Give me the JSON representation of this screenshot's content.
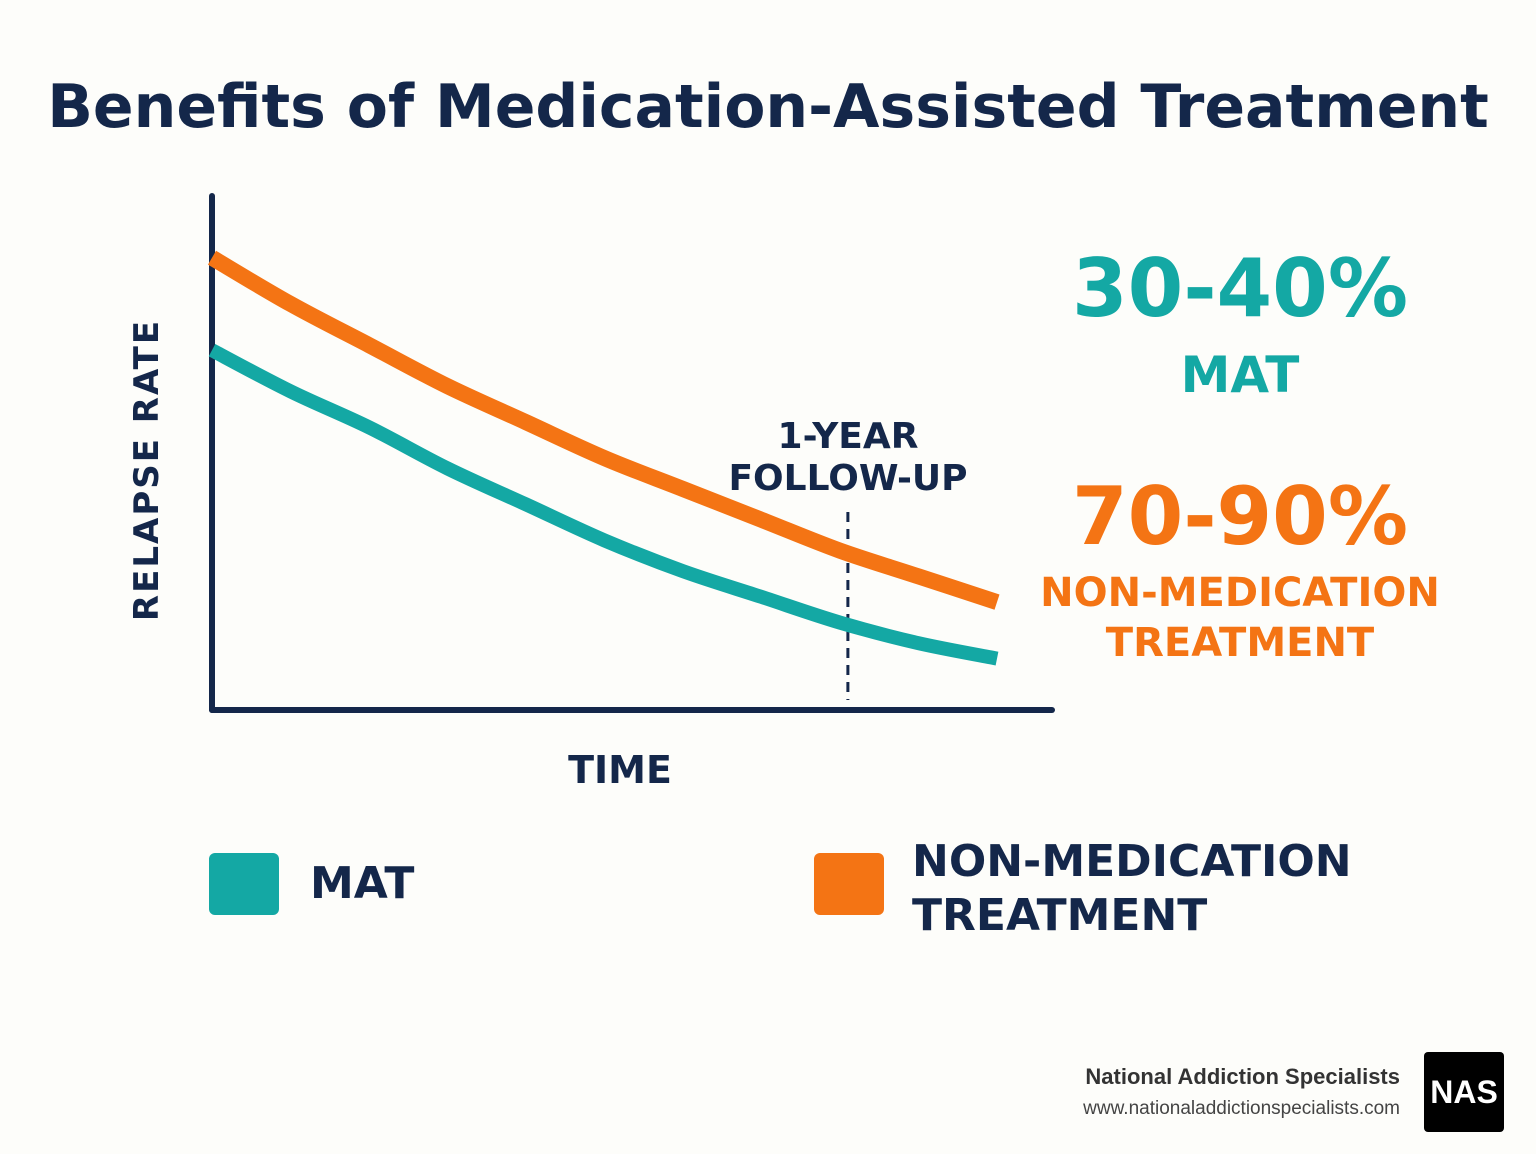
{
  "title": "Benefits of Medication-Assisted Treatment",
  "chart_data": {
    "type": "line",
    "xlabel": "TIME",
    "ylabel": "RELAPSE RATE",
    "x": [
      0,
      0.1,
      0.2,
      0.3,
      0.4,
      0.5,
      0.6,
      0.7,
      0.8,
      0.9,
      1.0
    ],
    "series": [
      {
        "name": "NON-MEDICATION TREATMENT",
        "color": "#f47414",
        "values": [
          0.88,
          0.79,
          0.71,
          0.63,
          0.56,
          0.49,
          0.43,
          0.37,
          0.31,
          0.26,
          0.21
        ]
      },
      {
        "name": "MAT",
        "color": "#14a8a4",
        "values": [
          0.7,
          0.62,
          0.55,
          0.47,
          0.4,
          0.33,
          0.27,
          0.22,
          0.17,
          0.13,
          0.1
        ]
      }
    ],
    "annotation": {
      "x": 0.81,
      "lines": [
        "1-YEAR",
        "FOLLOW-UP"
      ]
    },
    "xlim": [
      0,
      1.07
    ],
    "ylim": [
      0,
      1
    ]
  },
  "stats": {
    "mat_value": "30-40%",
    "mat_label": "MAT",
    "non_value": "70-90%",
    "non_label_1": "NON-MEDICATION",
    "non_label_2": "TREATMENT"
  },
  "legend": {
    "mat": "MAT",
    "non_1": "NON-MEDICATION",
    "non_2": "TREATMENT"
  },
  "colors": {
    "mat": "#14a8a4",
    "non": "#f47414",
    "navy": "#14274a"
  },
  "footer": {
    "org": "National Addiction Specialists",
    "url": "www.nationaladdictionspecialists.com",
    "logo": "NAS"
  }
}
